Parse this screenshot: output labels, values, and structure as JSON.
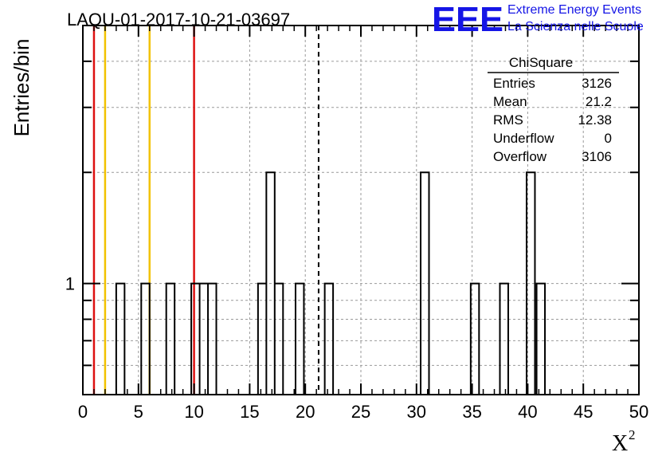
{
  "chart_data": {
    "type": "histogram",
    "title": "LAQU-01-2017-10-21-03697",
    "xlabel": "X",
    "xlabel_superscript": "2",
    "ylabel": "Entries/bin",
    "xlim": [
      0,
      50
    ],
    "ylim_log": [
      0.5,
      5
    ],
    "x_ticks": [
      0,
      5,
      10,
      15,
      20,
      25,
      30,
      35,
      40,
      45,
      50
    ],
    "y_tick_labels": [
      {
        "value": 1,
        "label": "1"
      }
    ],
    "grid": true,
    "bin_width": 0.75,
    "bins": [
      {
        "lo": 3.0,
        "count": 1
      },
      {
        "lo": 5.25,
        "count": 1
      },
      {
        "lo": 7.5,
        "count": 1
      },
      {
        "lo": 9.75,
        "count": 1
      },
      {
        "lo": 10.5,
        "count": 1
      },
      {
        "lo": 11.25,
        "count": 1
      },
      {
        "lo": 15.75,
        "count": 1
      },
      {
        "lo": 16.5,
        "count": 2
      },
      {
        "lo": 17.25,
        "count": 1
      },
      {
        "lo": 19.125,
        "count": 1
      },
      {
        "lo": 21.75,
        "count": 1
      },
      {
        "lo": 30.375,
        "count": 2
      },
      {
        "lo": 34.875,
        "count": 1
      },
      {
        "lo": 37.5,
        "count": 1
      },
      {
        "lo": 39.9,
        "count": 2
      },
      {
        "lo": 40.8,
        "count": 1
      }
    ],
    "vertical_lines": [
      {
        "x": 1.0,
        "color": "#dd1111",
        "style": "solid"
      },
      {
        "x": 2.0,
        "color": "#f2c200",
        "style": "solid"
      },
      {
        "x": 6.0,
        "color": "#f2c200",
        "style": "solid"
      },
      {
        "x": 10.0,
        "color": "#dd1111",
        "style": "solid"
      },
      {
        "x": 21.2,
        "color": "#000000",
        "style": "dashed"
      }
    ],
    "stats_box": {
      "title": "ChiSquare",
      "rows": [
        {
          "label": "Entries",
          "value": "3126"
        },
        {
          "label": "Mean",
          "value": "21.2"
        },
        {
          "label": "RMS",
          "value": "12.38"
        },
        {
          "label": "Underflow",
          "value": "0"
        },
        {
          "label": "Overflow",
          "value": "3106"
        }
      ]
    }
  },
  "logo": {
    "mark": "EEE",
    "line1": "Extreme Energy Events",
    "line2": "La Scienza nelle Scuole",
    "color": "#1515e6"
  }
}
